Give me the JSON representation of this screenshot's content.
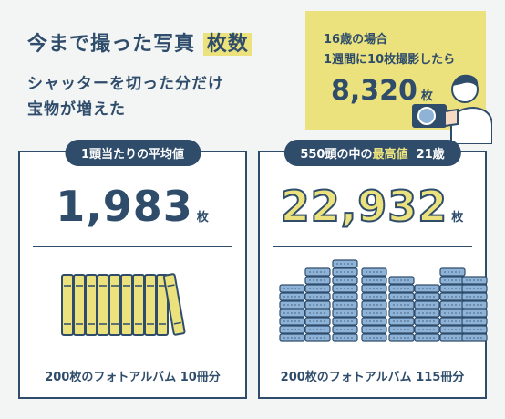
{
  "header": {
    "title_main": "今まで撮った写真",
    "title_highlight": "枚数",
    "subtitle_line1": "シャッターを切った分だけ",
    "subtitle_line2": "宝物が増えた"
  },
  "info_box": {
    "line1": "16歳の場合",
    "line2": "1週間に10枚撮影したら",
    "value": "8,320",
    "unit": "枚"
  },
  "average_card": {
    "label": "1頭当たりの平均値",
    "value": "1,983",
    "unit": "枚",
    "caption": "200枚のフォトアルバム 10冊分",
    "albums": 10
  },
  "max_card": {
    "label_prefix": "550頭の中の",
    "label_highlight": "最高値",
    "label_suffix": "21歳",
    "value": "22,932",
    "unit": "枚",
    "caption": "200枚のフォトアルバム 115冊分",
    "albums": 115
  },
  "colors": {
    "navy": "#2f4d6b",
    "yellow": "#ece27d",
    "blue": "#8fb3d6"
  }
}
